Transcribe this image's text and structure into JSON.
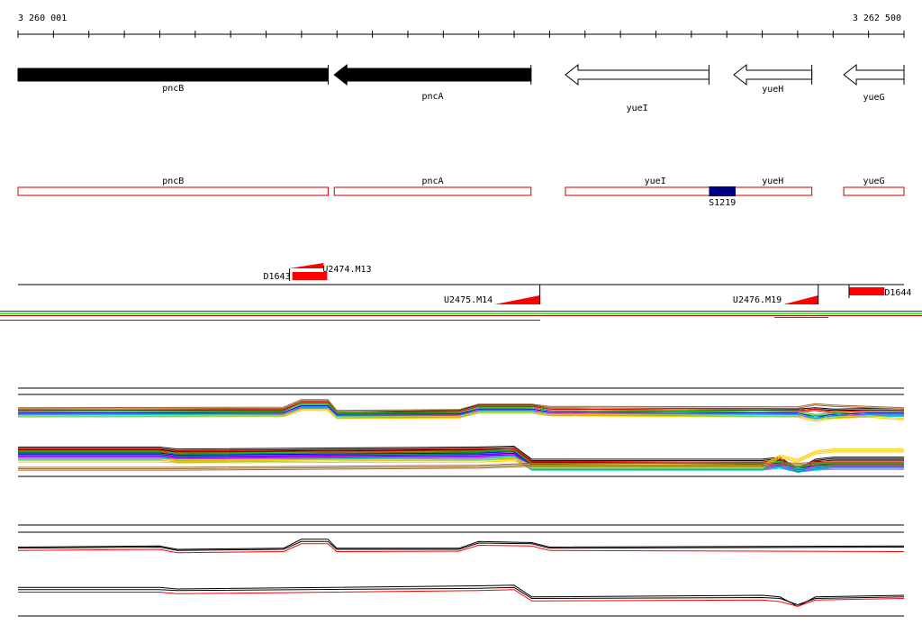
{
  "ruler": {
    "start_label": "3 260 001",
    "end_label": "3 262 500",
    "start": 3260001,
    "end": 3262500
  },
  "genes": [
    {
      "name": "pncB",
      "start": 3260001,
      "end": 3260876,
      "strand": "-",
      "filled": true
    },
    {
      "name": "pncA",
      "start": 3260893,
      "end": 3261448,
      "strand": "-",
      "filled": true
    },
    {
      "name": "yueI",
      "start": 3261545,
      "end": 3261950,
      "strand": "-",
      "filled": false
    },
    {
      "name": "yueH",
      "start": 3262020,
      "end": 3262240,
      "strand": "-",
      "filled": false
    },
    {
      "name": "yueG",
      "start": 3262330,
      "end": 3262500,
      "strand": "-",
      "filled": false
    }
  ],
  "annotation_boxes": [
    {
      "name": "pncB",
      "start": 3260001,
      "end": 3260876
    },
    {
      "name": "pncA",
      "start": 3260893,
      "end": 3261448
    },
    {
      "name": "yueI",
      "start": 3261545,
      "end": 3262240,
      "label2": "yueH"
    },
    {
      "name": "yueG",
      "start": 3262330,
      "end": 3262500
    }
  ],
  "site": {
    "name": "S1219",
    "start": 3261950,
    "end": 3262025,
    "color": "#000080"
  },
  "transcript_features": [
    {
      "name": "D1643",
      "start": 3260767,
      "end": 3260873,
      "kind": "block"
    },
    {
      "name": "U2474.M13",
      "start": 3260767,
      "end": 3260873,
      "kind": "wedge-up"
    },
    {
      "name": "U2475.M14",
      "start": 3261345,
      "end": 3261473,
      "kind": "wedge-down"
    },
    {
      "name": "U2476.M19",
      "start": 3262160,
      "end": 3262258,
      "kind": "wedge-down"
    },
    {
      "name": "D1644",
      "start": 3262345,
      "end": 3262445,
      "kind": "block"
    }
  ],
  "colors": {
    "gene_filled": "#000000",
    "gene_outline": "#000000",
    "annotation_box": "#cc0000",
    "feature": "#ff0000",
    "strip_green": "#33ff33",
    "strip_red": "#cc0000"
  },
  "chart_data": [
    {
      "type": "line",
      "title": "",
      "description": "multi-sample expression profiles, upper strand",
      "x": [
        3260001,
        3260750,
        3260800,
        3260875,
        3260900,
        3261245,
        3261300,
        3261450,
        3261500,
        3262200,
        3262250,
        3262300,
        3262400,
        3262500
      ],
      "series": [
        {
          "color": "#000000",
          "values": [
            0.5,
            0.52,
            0.8,
            0.8,
            0.4,
            0.45,
            0.65,
            0.65,
            0.55,
            0.5,
            0.55,
            0.5,
            0.52,
            0.5
          ]
        },
        {
          "color": "#ff0000",
          "values": [
            0.45,
            0.48,
            0.75,
            0.75,
            0.4,
            0.4,
            0.6,
            0.6,
            0.5,
            0.45,
            0.5,
            0.4,
            0.45,
            0.45
          ]
        },
        {
          "color": "#00cc00",
          "values": [
            0.4,
            0.42,
            0.7,
            0.7,
            0.35,
            0.35,
            0.55,
            0.55,
            0.45,
            0.4,
            0.3,
            0.35,
            0.4,
            0.4
          ]
        },
        {
          "color": "#0000ff",
          "values": [
            0.35,
            0.38,
            0.62,
            0.62,
            0.3,
            0.32,
            0.5,
            0.5,
            0.4,
            0.35,
            0.2,
            0.3,
            0.35,
            0.35
          ]
        },
        {
          "color": "#ff00ff",
          "values": [
            0.3,
            0.33,
            0.58,
            0.58,
            0.25,
            0.28,
            0.45,
            0.45,
            0.35,
            0.3,
            0.15,
            0.25,
            0.3,
            0.3
          ]
        },
        {
          "color": "#00cccc",
          "values": [
            0.28,
            0.3,
            0.55,
            0.55,
            0.22,
            0.25,
            0.42,
            0.42,
            0.32,
            0.28,
            0.2,
            0.22,
            0.28,
            0.28
          ]
        },
        {
          "color": "#ffcc00",
          "values": [
            0.25,
            0.27,
            0.5,
            0.5,
            0.2,
            0.22,
            0.4,
            0.4,
            0.3,
            0.25,
            0.1,
            0.2,
            0.25,
            0.15
          ]
        },
        {
          "color": "#996633",
          "values": [
            0.55,
            0.57,
            0.85,
            0.85,
            0.45,
            0.48,
            0.68,
            0.68,
            0.6,
            0.58,
            0.7,
            0.65,
            0.6,
            0.55
          ]
        }
      ]
    },
    {
      "type": "line",
      "title": "",
      "description": "multi-sample expression profiles, lower strand",
      "x": [
        3260001,
        3260400,
        3260450,
        3261300,
        3261400,
        3261450,
        3262100,
        3262150,
        3262200,
        3262250,
        3262300,
        3262500
      ],
      "series": [
        {
          "color": "#000000",
          "values": [
            0.6,
            0.6,
            0.55,
            0.6,
            0.62,
            0.3,
            0.3,
            0.35,
            0.05,
            0.3,
            0.35,
            0.35
          ]
        },
        {
          "color": "#ff0000",
          "values": [
            0.55,
            0.55,
            0.5,
            0.55,
            0.58,
            0.25,
            0.22,
            0.3,
            0.1,
            0.25,
            0.25,
            0.25
          ]
        },
        {
          "color": "#00cc00",
          "values": [
            0.5,
            0.5,
            0.45,
            0.5,
            0.52,
            0.2,
            0.2,
            0.25,
            0.1,
            0.2,
            0.2,
            0.2
          ]
        },
        {
          "color": "#0000ff",
          "values": [
            0.45,
            0.45,
            0.4,
            0.45,
            0.48,
            0.15,
            0.15,
            0.2,
            0.05,
            0.15,
            0.18,
            0.18
          ]
        },
        {
          "color": "#ff00ff",
          "values": [
            0.4,
            0.4,
            0.35,
            0.4,
            0.42,
            0.12,
            0.12,
            0.18,
            0.05,
            0.12,
            0.15,
            0.15
          ]
        },
        {
          "color": "#00cccc",
          "values": [
            0.35,
            0.35,
            0.3,
            0.35,
            0.38,
            0.1,
            0.1,
            0.15,
            0.05,
            0.1,
            0.12,
            0.12
          ]
        },
        {
          "color": "#ffcc00",
          "values": [
            0.3,
            0.3,
            0.28,
            0.3,
            0.33,
            0.15,
            0.15,
            0.4,
            0.3,
            0.5,
            0.55,
            0.55
          ]
        },
        {
          "color": "#996633",
          "values": [
            0.1,
            0.1,
            0.1,
            0.15,
            0.18,
            0.2,
            0.2,
            0.22,
            0.2,
            0.22,
            0.22,
            0.22
          ]
        }
      ]
    },
    {
      "type": "line",
      "title": "",
      "description": "summary profiles, upper strand",
      "x": [
        3260001,
        3260400,
        3260450,
        3260750,
        3260800,
        3260875,
        3260900,
        3261245,
        3261300,
        3261450,
        3261500,
        3262500
      ],
      "series": [
        {
          "color": "#000000",
          "values": [
            0.5,
            0.55,
            0.4,
            0.45,
            0.85,
            0.85,
            0.45,
            0.45,
            0.75,
            0.7,
            0.5,
            0.55
          ]
        },
        {
          "color": "#000000",
          "values": [
            0.45,
            0.5,
            0.35,
            0.4,
            0.75,
            0.75,
            0.4,
            0.4,
            0.68,
            0.65,
            0.45,
            0.5
          ]
        },
        {
          "color": "#ff0000",
          "values": [
            0.35,
            0.4,
            0.25,
            0.3,
            0.65,
            0.65,
            0.3,
            0.32,
            0.58,
            0.55,
            0.35,
            0.3
          ]
        }
      ]
    },
    {
      "type": "line",
      "title": "",
      "description": "summary profiles, lower strand",
      "x": [
        3260001,
        3260400,
        3260450,
        3261300,
        3261400,
        3261450,
        3262100,
        3262150,
        3262200,
        3262250,
        3262500
      ],
      "series": [
        {
          "color": "#000000",
          "values": [
            0.65,
            0.65,
            0.6,
            0.7,
            0.72,
            0.35,
            0.4,
            0.35,
            0.05,
            0.35,
            0.4
          ]
        },
        {
          "color": "#000000",
          "values": [
            0.58,
            0.58,
            0.55,
            0.62,
            0.65,
            0.3,
            0.33,
            0.3,
            0.1,
            0.3,
            0.35
          ]
        },
        {
          "color": "#ff0000",
          "values": [
            0.5,
            0.5,
            0.45,
            0.55,
            0.58,
            0.22,
            0.25,
            0.2,
            0.05,
            0.25,
            0.3
          ]
        }
      ]
    }
  ]
}
